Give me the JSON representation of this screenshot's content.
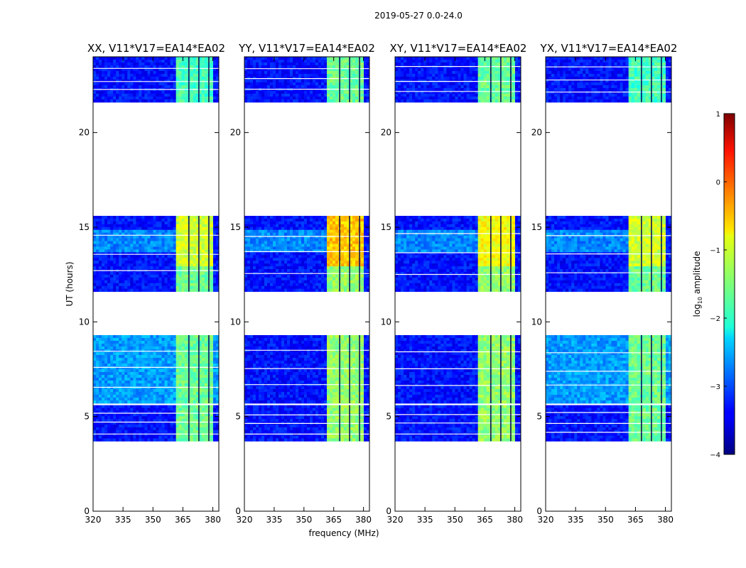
{
  "suptitle": "2019-05-27 0.0-24.0",
  "chart_data": {
    "type": "heatmap",
    "xlabel": "frequency (MHz)",
    "ylabel": "UT (hours)",
    "xlim": [
      320,
      383
    ],
    "ylim": [
      0,
      24
    ],
    "xticks": [
      320,
      335,
      350,
      365,
      380
    ],
    "yticks": [
      0,
      5,
      10,
      15,
      20
    ],
    "colorbar": {
      "label": "log",
      "label_sub": "10",
      "label_tail": " amplitude",
      "range": [
        -4,
        1
      ],
      "ticks": [
        1,
        0,
        -1,
        -2,
        -3,
        -4
      ],
      "tick_labels": [
        "1",
        "0",
        "−1",
        "−2",
        "−3",
        "−4"
      ],
      "colormap": "jet"
    },
    "data_time_blocks_hours": [
      [
        3.7,
        5.6
      ],
      [
        5.7,
        9.3
      ],
      [
        11.6,
        15.6
      ],
      [
        21.6,
        24.0
      ]
    ],
    "bright_band_mhz": [
      361,
      380
    ],
    "panels": [
      {
        "title": "XX, V11*V17=EA14*EA02",
        "pol": "XX"
      },
      {
        "title": "YY, V11*V17=EA14*EA02",
        "pol": "YY"
      },
      {
        "title": "XY, V11*V17=EA14*EA02",
        "pol": "XY"
      },
      {
        "title": "YX, V11*V17=EA14*EA02",
        "pol": "YX"
      }
    ]
  }
}
